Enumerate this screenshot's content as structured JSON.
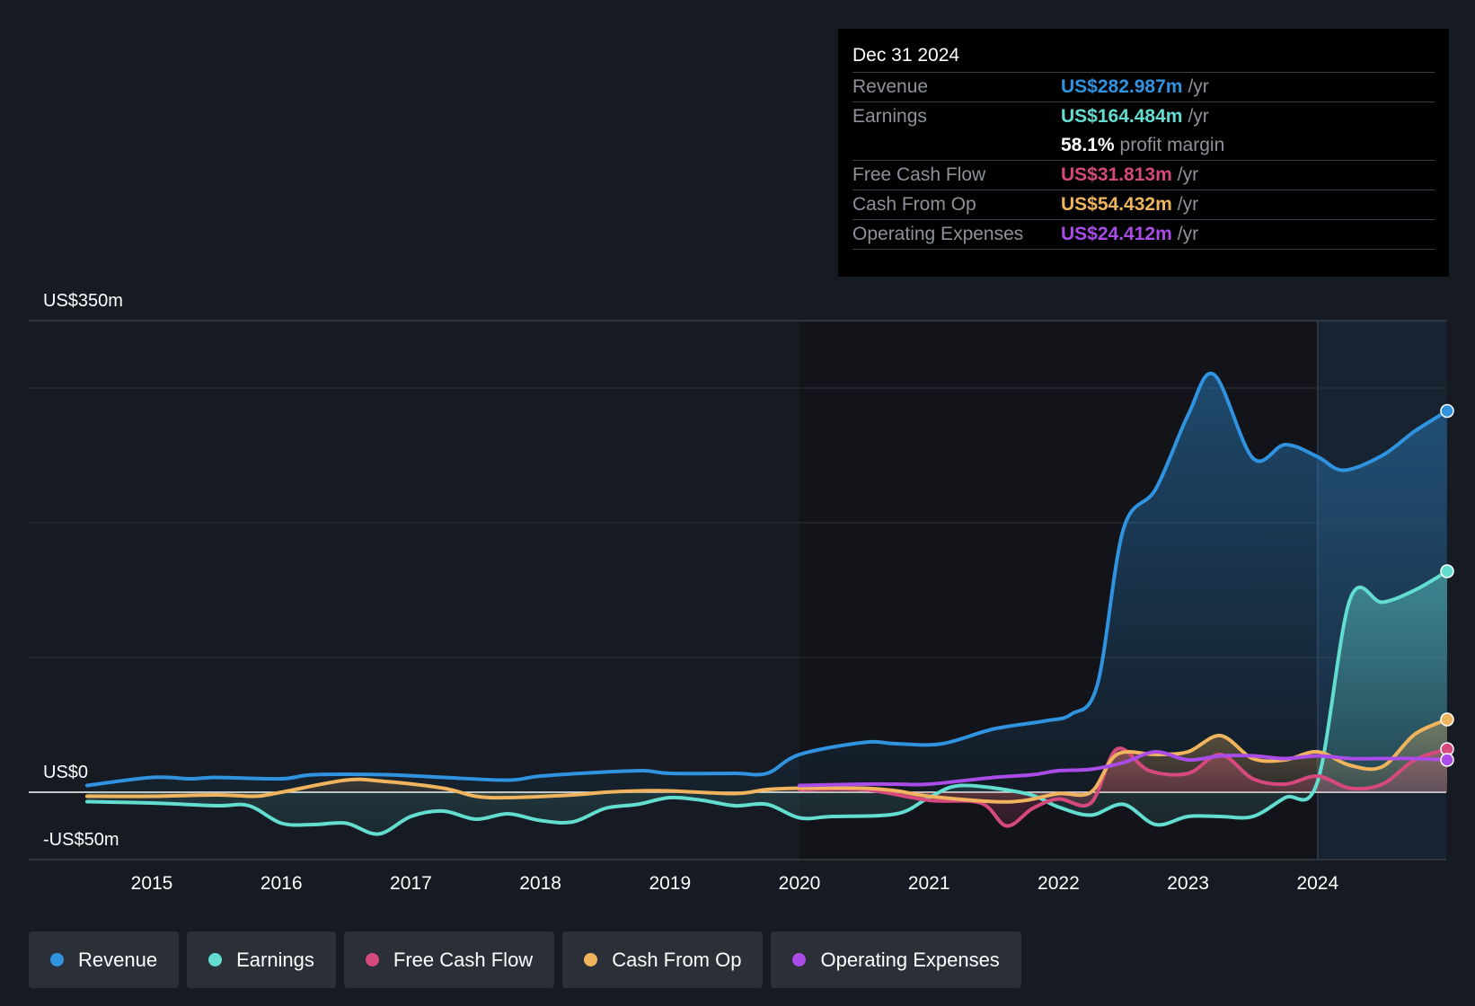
{
  "tooltip": {
    "date": "Dec 31 2024",
    "rows": [
      {
        "label": "Revenue",
        "value": "US$282.987m",
        "unit": "/yr",
        "color": "#2f93e0"
      },
      {
        "label": "Earnings",
        "value": "US$164.484m",
        "unit": "/yr",
        "color": "#62ddd0"
      },
      {
        "label": "",
        "value": "58.1%",
        "unit": "profit margin",
        "color": "#ffffff"
      },
      {
        "label": "Free Cash Flow",
        "value": "US$31.813m",
        "unit": "/yr",
        "color": "#d6497d"
      },
      {
        "label": "Cash From Op",
        "value": "US$54.432m",
        "unit": "/yr",
        "color": "#f0b35e"
      },
      {
        "label": "Operating Expenses",
        "value": "US$24.412m",
        "unit": "/yr",
        "color": "#a94ce8"
      }
    ]
  },
  "legend": [
    {
      "label": "Revenue",
      "color": "#2f93e0"
    },
    {
      "label": "Earnings",
      "color": "#62ddd0"
    },
    {
      "label": "Free Cash Flow",
      "color": "#d6497d"
    },
    {
      "label": "Cash From Op",
      "color": "#f0b35e"
    },
    {
      "label": "Operating Expenses",
      "color": "#a94ce8"
    }
  ],
  "chart_data": {
    "type": "area",
    "title": "",
    "xlabel": "",
    "ylabel": "",
    "ylim": [
      -50,
      350
    ],
    "xlim": [
      2014.45,
      2025.0
    ],
    "y_tick_labels": [
      {
        "value": 350,
        "label": "US$350m"
      },
      {
        "value": 0,
        "label": "US$0"
      },
      {
        "value": -50,
        "label": "-US$50m"
      }
    ],
    "gridlines": [
      350,
      300,
      200,
      100,
      0,
      -50
    ],
    "x_ticks": [
      2015,
      2016,
      2017,
      2018,
      2019,
      2020,
      2021,
      2022,
      2023,
      2024
    ],
    "x_tick_labels": [
      "2015",
      "2016",
      "2017",
      "2018",
      "2019",
      "2020",
      "2021",
      "2022",
      "2023",
      "2024"
    ],
    "forecast_start": 2024.0,
    "series": [
      {
        "name": "Revenue",
        "color": "#2f93e0",
        "fill": true,
        "points": [
          [
            2014.5,
            5
          ],
          [
            2015,
            11
          ],
          [
            2015.3,
            10
          ],
          [
            2015.5,
            11
          ],
          [
            2016,
            10
          ],
          [
            2016.25,
            13
          ],
          [
            2016.8,
            13
          ],
          [
            2017.25,
            11
          ],
          [
            2017.75,
            9
          ],
          [
            2018,
            12
          ],
          [
            2018.5,
            15
          ],
          [
            2018.8,
            16
          ],
          [
            2019,
            14
          ],
          [
            2019.5,
            14
          ],
          [
            2019.75,
            14
          ],
          [
            2020,
            28
          ],
          [
            2020.5,
            37
          ],
          [
            2020.75,
            36
          ],
          [
            2021.1,
            36
          ],
          [
            2021.5,
            47
          ],
          [
            2021.9,
            53
          ],
          [
            2022.1,
            58
          ],
          [
            2022.3,
            80
          ],
          [
            2022.5,
            195
          ],
          [
            2022.75,
            225
          ],
          [
            2023,
            280
          ],
          [
            2023.2,
            310
          ],
          [
            2023.5,
            248
          ],
          [
            2023.75,
            258
          ],
          [
            2024,
            249
          ],
          [
            2024.2,
            239
          ],
          [
            2024.5,
            250
          ],
          [
            2024.75,
            268
          ],
          [
            2025,
            283
          ]
        ]
      },
      {
        "name": "Earnings",
        "color": "#62ddd0",
        "fill": true,
        "points": [
          [
            2014.5,
            -7
          ],
          [
            2015,
            -8
          ],
          [
            2015.5,
            -10
          ],
          [
            2015.75,
            -10
          ],
          [
            2016,
            -23
          ],
          [
            2016.25,
            -24
          ],
          [
            2016.5,
            -23
          ],
          [
            2016.75,
            -31
          ],
          [
            2017,
            -18
          ],
          [
            2017.25,
            -14
          ],
          [
            2017.5,
            -20
          ],
          [
            2017.75,
            -16
          ],
          [
            2018,
            -21
          ],
          [
            2018.25,
            -22
          ],
          [
            2018.5,
            -12
          ],
          [
            2018.75,
            -9
          ],
          [
            2019,
            -4
          ],
          [
            2019.25,
            -6
          ],
          [
            2019.5,
            -10
          ],
          [
            2019.75,
            -9
          ],
          [
            2020,
            -19
          ],
          [
            2020.25,
            -18
          ],
          [
            2020.75,
            -16
          ],
          [
            2021,
            -4
          ],
          [
            2021.25,
            5
          ],
          [
            2021.75,
            -1
          ],
          [
            2022,
            -11
          ],
          [
            2022.25,
            -17
          ],
          [
            2022.5,
            -9
          ],
          [
            2022.75,
            -24
          ],
          [
            2023,
            -18
          ],
          [
            2023.25,
            -18
          ],
          [
            2023.5,
            -18
          ],
          [
            2023.75,
            -4
          ],
          [
            2024,
            8
          ],
          [
            2024.25,
            143
          ],
          [
            2024.5,
            141
          ],
          [
            2024.75,
            150
          ],
          [
            2025,
            164
          ]
        ]
      },
      {
        "name": "Free Cash Flow",
        "color": "#d6497d",
        "fill": true,
        "points": [
          [
            2020,
            2
          ],
          [
            2020.5,
            2
          ],
          [
            2021,
            -6
          ],
          [
            2021.4,
            -8
          ],
          [
            2021.6,
            -25
          ],
          [
            2021.8,
            -12
          ],
          [
            2022,
            -5
          ],
          [
            2022.25,
            -8
          ],
          [
            2022.45,
            32
          ],
          [
            2022.7,
            16
          ],
          [
            2023,
            14
          ],
          [
            2023.25,
            28
          ],
          [
            2023.5,
            10
          ],
          [
            2023.75,
            6
          ],
          [
            2024,
            12
          ],
          [
            2024.25,
            3
          ],
          [
            2024.5,
            6
          ],
          [
            2024.75,
            24
          ],
          [
            2025,
            32
          ]
        ]
      },
      {
        "name": "Cash From Op",
        "color": "#f0b35e",
        "fill": false,
        "points": [
          [
            2014.5,
            -3
          ],
          [
            2015,
            -3
          ],
          [
            2015.5,
            -2
          ],
          [
            2015.8,
            -3
          ],
          [
            2016,
            0
          ],
          [
            2016.5,
            9
          ],
          [
            2016.8,
            8
          ],
          [
            2017.25,
            3
          ],
          [
            2017.5,
            -3
          ],
          [
            2017.75,
            -4
          ],
          [
            2018.25,
            -2
          ],
          [
            2018.5,
            0
          ],
          [
            2018.75,
            1
          ],
          [
            2019,
            1
          ],
          [
            2019.5,
            -1
          ],
          [
            2019.75,
            2
          ],
          [
            2020,
            3
          ],
          [
            2020.5,
            3
          ],
          [
            2020.75,
            1
          ],
          [
            2021,
            -3
          ],
          [
            2021.5,
            -7
          ],
          [
            2021.75,
            -6
          ],
          [
            2022,
            -1
          ],
          [
            2022.25,
            0
          ],
          [
            2022.45,
            28
          ],
          [
            2022.75,
            28
          ],
          [
            2023,
            30
          ],
          [
            2023.25,
            42
          ],
          [
            2023.5,
            25
          ],
          [
            2023.75,
            24
          ],
          [
            2024,
            30
          ],
          [
            2024.25,
            20
          ],
          [
            2024.5,
            19
          ],
          [
            2024.75,
            43
          ],
          [
            2025,
            54
          ]
        ]
      },
      {
        "name": "Operating Expenses",
        "color": "#a94ce8",
        "fill": false,
        "points": [
          [
            2020,
            5
          ],
          [
            2020.5,
            6
          ],
          [
            2020.75,
            6
          ],
          [
            2021,
            6
          ],
          [
            2021.5,
            11
          ],
          [
            2021.8,
            13
          ],
          [
            2022,
            16
          ],
          [
            2022.25,
            17
          ],
          [
            2022.5,
            22
          ],
          [
            2022.75,
            30
          ],
          [
            2023,
            24
          ],
          [
            2023.25,
            27
          ],
          [
            2023.5,
            27
          ],
          [
            2023.75,
            25
          ],
          [
            2024,
            27
          ],
          [
            2024.25,
            25
          ],
          [
            2024.5,
            25
          ],
          [
            2024.75,
            25
          ],
          [
            2025,
            24
          ]
        ]
      }
    ]
  }
}
